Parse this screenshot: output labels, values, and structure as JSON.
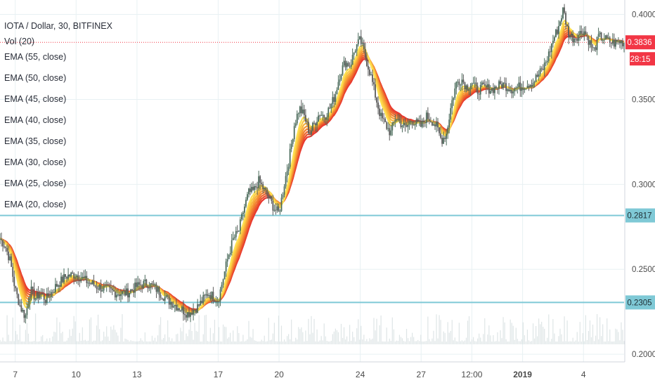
{
  "chart_title": "IOTA / Dollar, 30, BITFINEX",
  "volume_label": "Vol (20)",
  "ema_labels": [
    "EMA (55, close)",
    "EMA (50, close)",
    "EMA (45, close)",
    "EMA (40, close)",
    "EMA (35, close)",
    "EMA (30, close)",
    "EMA (25, close)",
    "EMA (20, close)"
  ],
  "colors": {
    "background": "#ffffff",
    "grid": "#e8f1f3",
    "price_line": "#f23645",
    "level_line": "#7fc9d6",
    "candle_up": "#4a6a5a",
    "candle_down": "#5b5b5b",
    "ema": [
      "#e8362f",
      "#ea4f2c",
      "#ee672d",
      "#f2802f",
      "#f59a33",
      "#f8b33a",
      "#fbc944",
      "#fde04f"
    ],
    "volume": "#d6dfe0"
  },
  "chart_data": {
    "type": "line",
    "title": "IOTA / Dollar, 30, BITFINEX",
    "ylim": [
      0.1955,
      0.4085
    ],
    "yticks": [
      0.2,
      0.25,
      0.3,
      0.35,
      0.4
    ],
    "ytick_labels": [
      "0.2000",
      "0.2500",
      "0.3000",
      "0.3500",
      "0.4000"
    ],
    "x_ticks": [
      {
        "label": "7",
        "x": 2.0
      },
      {
        "label": "10",
        "x": 5.0
      },
      {
        "label": "13",
        "x": 8.0
      },
      {
        "label": "17",
        "x": 12.0
      },
      {
        "label": "20",
        "x": 15.0
      },
      {
        "label": "24",
        "x": 19.0
      },
      {
        "label": "27",
        "x": 22.0
      },
      {
        "label": "12:00",
        "x": 24.5
      },
      {
        "label": "2019",
        "x": 27.0,
        "bold": true
      },
      {
        "label": "4",
        "x": 30.0
      }
    ],
    "xlim": [
      1.25,
      32.0
    ],
    "price_label": {
      "value": "0.3836",
      "timer": "28:15"
    },
    "level_lines": [
      {
        "value": 0.2817,
        "label": "0.2817"
      },
      {
        "value": 0.2305,
        "label": "0.2305"
      }
    ],
    "price_path": [
      [
        1.25,
        0.268
      ],
      [
        1.5,
        0.264
      ],
      [
        1.75,
        0.255
      ],
      [
        2.0,
        0.238
      ],
      [
        2.25,
        0.228
      ],
      [
        2.5,
        0.222
      ],
      [
        2.75,
        0.238
      ],
      [
        3.0,
        0.233
      ],
      [
        3.25,
        0.236
      ],
      [
        3.5,
        0.232
      ],
      [
        4.0,
        0.24
      ],
      [
        4.5,
        0.246
      ],
      [
        5.0,
        0.247
      ],
      [
        5.5,
        0.243
      ],
      [
        6.0,
        0.24
      ],
      [
        6.5,
        0.238
      ],
      [
        7.0,
        0.236
      ],
      [
        7.5,
        0.236
      ],
      [
        8.0,
        0.24
      ],
      [
        8.5,
        0.242
      ],
      [
        9.0,
        0.238
      ],
      [
        9.5,
        0.232
      ],
      [
        10.0,
        0.228
      ],
      [
        10.5,
        0.224
      ],
      [
        11.0,
        0.228
      ],
      [
        11.5,
        0.236
      ],
      [
        12.0,
        0.232
      ],
      [
        12.25,
        0.245
      ],
      [
        12.5,
        0.258
      ],
      [
        12.75,
        0.268
      ],
      [
        13.0,
        0.272
      ],
      [
        13.25,
        0.285
      ],
      [
        13.5,
        0.295
      ],
      [
        13.75,
        0.296
      ],
      [
        14.0,
        0.302
      ],
      [
        14.25,
        0.297
      ],
      [
        14.5,
        0.292
      ],
      [
        14.75,
        0.286
      ],
      [
        15.0,
        0.283
      ],
      [
        15.25,
        0.3
      ],
      [
        15.5,
        0.315
      ],
      [
        15.75,
        0.335
      ],
      [
        16.0,
        0.345
      ],
      [
        16.25,
        0.34
      ],
      [
        16.5,
        0.33
      ],
      [
        16.75,
        0.336
      ],
      [
        17.0,
        0.342
      ],
      [
        17.25,
        0.34
      ],
      [
        17.5,
        0.345
      ],
      [
        17.75,
        0.352
      ],
      [
        18.0,
        0.365
      ],
      [
        18.25,
        0.372
      ],
      [
        18.5,
        0.37
      ],
      [
        18.75,
        0.38
      ],
      [
        19.0,
        0.385
      ],
      [
        19.25,
        0.375
      ],
      [
        19.5,
        0.365
      ],
      [
        19.75,
        0.352
      ],
      [
        20.0,
        0.34
      ],
      [
        20.25,
        0.335
      ],
      [
        20.5,
        0.33
      ],
      [
        20.75,
        0.34
      ],
      [
        21.0,
        0.336
      ],
      [
        21.25,
        0.333
      ],
      [
        21.5,
        0.338
      ],
      [
        21.75,
        0.336
      ],
      [
        22.0,
        0.334
      ],
      [
        22.25,
        0.34
      ],
      [
        22.5,
        0.338
      ],
      [
        22.75,
        0.334
      ],
      [
        23.0,
        0.326
      ],
      [
        23.25,
        0.33
      ],
      [
        23.5,
        0.348
      ],
      [
        23.75,
        0.36
      ],
      [
        24.0,
        0.362
      ],
      [
        24.25,
        0.357
      ],
      [
        24.5,
        0.36
      ],
      [
        24.75,
        0.355
      ],
      [
        25.0,
        0.357
      ],
      [
        25.5,
        0.356
      ],
      [
        26.0,
        0.359
      ],
      [
        26.5,
        0.356
      ],
      [
        27.0,
        0.358
      ],
      [
        27.5,
        0.36
      ],
      [
        28.0,
        0.368
      ],
      [
        28.25,
        0.375
      ],
      [
        28.5,
        0.385
      ],
      [
        28.75,
        0.392
      ],
      [
        29.0,
        0.403
      ],
      [
        29.25,
        0.389
      ],
      [
        29.5,
        0.386
      ],
      [
        29.75,
        0.388
      ],
      [
        30.0,
        0.391
      ],
      [
        30.25,
        0.385
      ],
      [
        30.5,
        0.378
      ],
      [
        30.75,
        0.387
      ],
      [
        31.0,
        0.386
      ],
      [
        31.25,
        0.384
      ],
      [
        31.5,
        0.383
      ],
      [
        31.75,
        0.384
      ],
      [
        32.0,
        0.3836
      ]
    ],
    "grid": true,
    "legend_position": "top-left"
  }
}
